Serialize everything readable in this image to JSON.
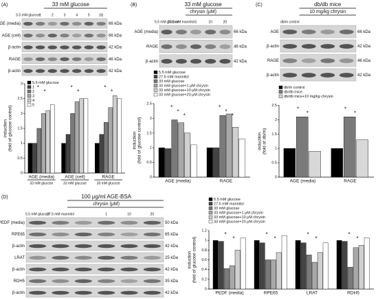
{
  "panels": [
    {
      "label": "(A)",
      "header": [
        "33 mM glucose"
      ],
      "lanes": [
        "5.5 mM glucose",
        "1",
        "2",
        "3",
        "4",
        "5",
        "(d)"
      ],
      "rows": [
        {
          "name": "AGE (media)",
          "kda": "66 kDa"
        },
        {
          "name": "AGE (cell)",
          "kda": "66 kDa"
        },
        {
          "name": "β-actin",
          "kda": "42 kDa"
        },
        {
          "name": "RAGE",
          "kda": "46 kDa"
        },
        {
          "name": "β-actin",
          "kda": "42 kDa"
        }
      ]
    },
    {
      "label": "(B)",
      "header": [
        "33 mM glucose",
        "chrysin (μM)"
      ],
      "lanes": [
        "5.5 mM glucose",
        "27.5 mM mannitol",
        "1",
        "10",
        "20"
      ],
      "rows": [
        {
          "name": "AGE (media)",
          "kda": "66 kDa"
        },
        {
          "name": "RAGE",
          "kda": "46 kDa"
        },
        {
          "name": "β-actin",
          "kda": "42 kDa"
        }
      ]
    },
    {
      "label": "(C)",
      "header": [
        "db/db mice",
        "10 mg/kg chrysin"
      ],
      "lanes": [
        "db/m control",
        "",
        "",
        ""
      ],
      "rows": [
        {
          "name": "AGE",
          "kda": "66 kDa"
        },
        {
          "name": "β-actin",
          "kda": "42 kDa"
        },
        {
          "name": "RAGE",
          "kda": "46 kDa"
        },
        {
          "name": "β-actin",
          "kda": "42 kDa"
        }
      ]
    },
    {
      "label": "(D)",
      "header": [
        "100 μg/ml  AGE-BSA",
        "chrysin (μM)"
      ],
      "lanes": [
        "5.5 mM glucose",
        "27.5 mM mannitol",
        "",
        "1",
        "10",
        "20"
      ],
      "rows": [
        {
          "name": "PEDF (media)",
          "kda": "50 kDa"
        },
        {
          "name": "RPE65",
          "kda": "65 kDa"
        },
        {
          "name": "β-actin",
          "kda": "42 kDa"
        },
        {
          "name": "LRAT",
          "kda": "25 kDa"
        },
        {
          "name": "β-actin",
          "kda": "42 kDa"
        },
        {
          "name": "RDH5",
          "kda": "35 kDa"
        },
        {
          "name": "β-actin",
          "kda": "42 kDa"
        }
      ]
    }
  ],
  "chart_data": [
    {
      "type": "bar",
      "ylabel": [
        "induction",
        "(fold of glucose control)"
      ],
      "categories": [
        "AGE (media)",
        "AGE (cell)",
        "RAGE"
      ],
      "group_labels": [
        "33 mM glucose",
        "33 mM glucose",
        "33 mM glucose"
      ],
      "legend": "upper left",
      "ylim": [
        0,
        3
      ],
      "yticks": [
        0,
        0.5,
        1,
        1.5,
        2,
        2.5,
        3
      ],
      "annotations": [
        "*",
        "*",
        "*",
        "*",
        "*",
        "*"
      ],
      "series": [
        {
          "name": "5.5 mM glucose",
          "color": "#000000",
          "values": [
            1,
            1,
            1
          ]
        },
        {
          "name": "1",
          "color": "#444444",
          "values": [
            1,
            1.3,
            1.3
          ]
        },
        {
          "name": "2",
          "color": "#7a7a7a",
          "values": [
            1.5,
            2,
            1.7
          ]
        },
        {
          "name": "3",
          "color": "#a8a8a8",
          "values": [
            2,
            2.4,
            2.2
          ]
        },
        {
          "name": "4",
          "color": "#d0d0d0",
          "values": [
            2.1,
            2.5,
            2.6
          ]
        },
        {
          "name": "5",
          "color": "#ffffff",
          "values": [
            2.3,
            2.5,
            2.5
          ]
        }
      ]
    },
    {
      "type": "bar",
      "ylabel": [
        "induction",
        "(fold of glucose control)"
      ],
      "categories": [
        "AGE (media)",
        "RAGE"
      ],
      "legend": "upper left",
      "ylim": [
        0,
        2.5
      ],
      "yticks": [
        0,
        0.5,
        1,
        1.5,
        2,
        2.5
      ],
      "annotations": [
        "*",
        "*",
        "*",
        "*",
        "*",
        "*"
      ],
      "series": [
        {
          "name": "5.5 mM glucose",
          "color": "#000000",
          "values": [
            1,
            1
          ]
        },
        {
          "name": "27.5 mM mannitol",
          "color": "#444444",
          "values": [
            0.97,
            1
          ]
        },
        {
          "name": "33 mM glucose",
          "color": "#7a7a7a",
          "values": [
            1.95,
            2.1
          ]
        },
        {
          "name": "33 mM glucose+1 μM chrysin",
          "color": "#a8a8a8",
          "values": [
            1.85,
            2.15
          ]
        },
        {
          "name": "33 mM glucose+10 μM chrysin",
          "color": "#d0d0d0",
          "values": [
            1.5,
            1.7
          ]
        },
        {
          "name": "33 mM glucose+20 μM chrysin",
          "color": "#ffffff",
          "values": [
            1.1,
            1.3
          ]
        }
      ]
    },
    {
      "type": "bar",
      "ylabel": [
        "induction",
        "(fold of db/m)"
      ],
      "categories": [
        "AGE (media)",
        "RAGE"
      ],
      "legend": "upper left",
      "ylim": [
        0,
        2.5
      ],
      "yticks": [
        0,
        0.5,
        1,
        1.5,
        2,
        2.5
      ],
      "annotations": [
        "*",
        "*",
        "*",
        "*"
      ],
      "series": [
        {
          "name": "db/m control",
          "color": "#000000",
          "values": [
            1,
            1
          ]
        },
        {
          "name": "db/db mice",
          "color": "#7a7a7a",
          "values": [
            2.1,
            2.1
          ]
        },
        {
          "name": "db/db mice+10 mg/kg chrysin",
          "color": "#d8d8d8",
          "values": [
            0.9,
            1.3
          ]
        }
      ]
    },
    {
      "type": "bar",
      "ylabel": [
        "induction",
        "(fold of glucose control)"
      ],
      "categories": [
        "PEDF (media)",
        "RPE65",
        "LRAT",
        "RDH5"
      ],
      "legend": "upper left",
      "ylim": [
        0,
        1.2
      ],
      "yticks": [
        0,
        0.2,
        0.4,
        0.6,
        0.8,
        1,
        1.2
      ],
      "annotations": [
        "*",
        "*",
        "*",
        "*",
        "*",
        "*",
        "*",
        "*"
      ],
      "series": [
        {
          "name": "5.5 mM glucose",
          "color": "#000000",
          "values": [
            1,
            1,
            1,
            1
          ]
        },
        {
          "name": "27.5 mM mannitol",
          "color": "#444444",
          "values": [
            0.98,
            0.95,
            0.95,
            0.98
          ]
        },
        {
          "name": "33 mM glucose",
          "color": "#7a7a7a",
          "values": [
            0.42,
            0.6,
            0.7,
            0.45
          ]
        },
        {
          "name": "33 mM glucose+1 μM chrysin",
          "color": "#a8a8a8",
          "values": [
            0.48,
            0.6,
            0.55,
            0.85
          ]
        },
        {
          "name": "33 mM glucose+10 μM chrysin",
          "color": "#d0d0d0",
          "values": [
            0.8,
            0.75,
            0.75,
            0.9
          ]
        },
        {
          "name": "33 mM glucose+20 μM chrysin",
          "color": "#ffffff",
          "values": [
            1.05,
            1.1,
            0.95,
            1.05
          ]
        }
      ]
    }
  ]
}
